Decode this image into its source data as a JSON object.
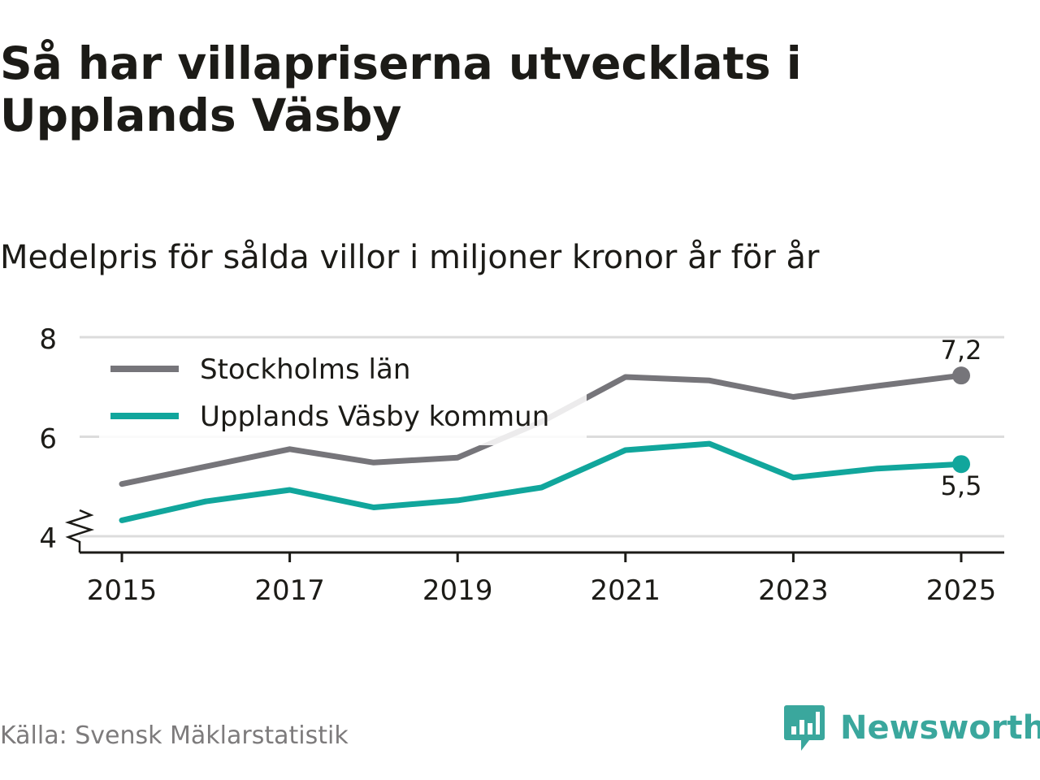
{
  "title": "Så har villapriserna utvecklats i Upplands Väsby",
  "subtitle": "Medelpris för sålda villor i miljoner kronor år för år",
  "source": "Källa: Svensk Mäklarstatistik",
  "brand": {
    "name": "Newsworthy",
    "icon": "newsworthy-logo-icon"
  },
  "colors": {
    "stockholm": "#76757a",
    "vasby": "#11a69c",
    "grid": "#dcdcdc",
    "axis": "#1c1b17",
    "text": "#1c1b17"
  },
  "chart_data": {
    "type": "line",
    "title": "Så har villapriserna utvecklats i Upplands Väsby",
    "subtitle": "Medelpris för sålda villor i miljoner kronor år för år",
    "x": [
      2015,
      2016,
      2017,
      2018,
      2019,
      2020,
      2021,
      2022,
      2023,
      2024,
      2025
    ],
    "xticks": [
      2015,
      2017,
      2019,
      2021,
      2023,
      2025
    ],
    "yticks": [
      4,
      6,
      8
    ],
    "ylim": [
      4,
      8
    ],
    "y_axis_break": true,
    "legend_position": "top-left",
    "series": [
      {
        "name": "Stockholms län",
        "key": "stockholm",
        "values": [
          5.05,
          5.4,
          5.75,
          5.48,
          5.58,
          6.3,
          7.2,
          7.13,
          6.8,
          7.02,
          7.23
        ],
        "end_label": "7,2",
        "end_label_pos": "above"
      },
      {
        "name": "Upplands Väsby kommun",
        "key": "vasby",
        "values": [
          4.32,
          4.7,
          4.93,
          4.58,
          4.72,
          4.98,
          5.73,
          5.86,
          5.18,
          5.36,
          5.45
        ],
        "end_label": "5,5",
        "end_label_pos": "below"
      }
    ]
  }
}
